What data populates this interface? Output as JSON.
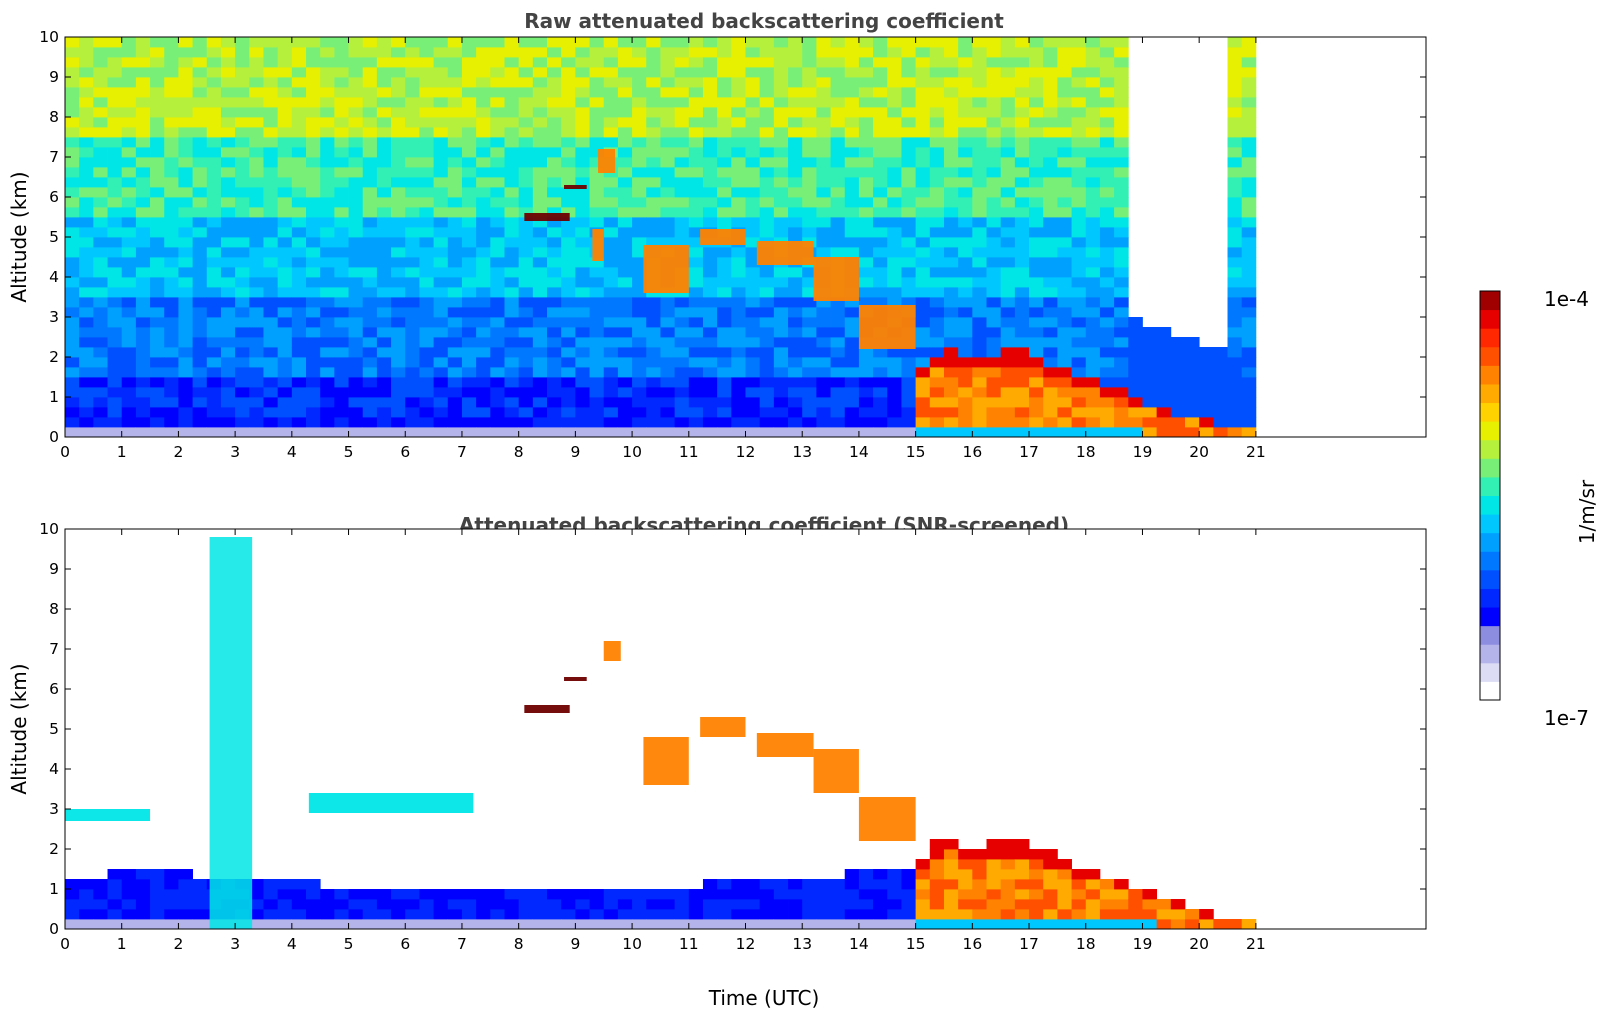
{
  "chart_data": [
    {
      "type": "heatmap",
      "title": "Raw attenuated backscattering coefficient",
      "xlabel": "",
      "ylabel": "Altitude (km)",
      "xlim": [
        0,
        24
      ],
      "ylim": [
        0,
        10
      ],
      "xticks": [
        "0",
        "1",
        "2",
        "3",
        "4",
        "5",
        "6",
        "7",
        "8",
        "9",
        "10",
        "11",
        "12",
        "13",
        "14",
        "15",
        "16",
        "17",
        "18",
        "19",
        "20",
        "21"
      ],
      "yticks": [
        "0",
        "1",
        "2",
        "3",
        "4",
        "5",
        "6",
        "7",
        "8",
        "9",
        "10"
      ],
      "data_end_hour": 21,
      "layer_top_km": [
        [
          0,
          0.35
        ],
        [
          1,
          0.4
        ],
        [
          2,
          0.4
        ],
        [
          3,
          0.45
        ],
        [
          4,
          0.45
        ],
        [
          5,
          0.45
        ],
        [
          6,
          0.45
        ],
        [
          7,
          0.45
        ],
        [
          8,
          0.45
        ],
        [
          9,
          0.45
        ],
        [
          10,
          0.45
        ],
        [
          11,
          0.45
        ],
        [
          12,
          0.45
        ],
        [
          13,
          0.45
        ],
        [
          14,
          0.45
        ],
        [
          15,
          0.5
        ],
        [
          15.1,
          1.8
        ],
        [
          15.5,
          2.2
        ],
        [
          16,
          1.9
        ],
        [
          16.5,
          2.1
        ],
        [
          17,
          2.2
        ],
        [
          17.5,
          1.7
        ],
        [
          18,
          1.5
        ],
        [
          18.5,
          1.2
        ],
        [
          19,
          0.9
        ],
        [
          19.5,
          0.6
        ],
        [
          20,
          0.4
        ],
        [
          20.5,
          0.3
        ],
        [
          21,
          0.15
        ]
      ],
      "features": [
        {
          "kind": "cloud",
          "t": [
            8.1,
            8.9
          ],
          "alt_km": [
            5.4,
            5.6
          ],
          "level": "max"
        },
        {
          "kind": "cloud",
          "t": [
            8.8,
            9.2
          ],
          "alt_km": [
            6.2,
            6.3
          ],
          "level": "max"
        },
        {
          "kind": "cloud",
          "t": [
            9.4,
            9.7
          ],
          "alt_km": [
            6.6,
            7.2
          ],
          "level": "high"
        },
        {
          "kind": "cloud",
          "t": [
            9.3,
            9.5
          ],
          "alt_km": [
            4.4,
            5.2
          ],
          "level": "high"
        },
        {
          "kind": "cloud",
          "t": [
            10.2,
            11.0
          ],
          "alt_km": [
            3.6,
            4.8
          ],
          "level": "high"
        },
        {
          "kind": "cloud",
          "t": [
            11.2,
            12.0
          ],
          "alt_km": [
            4.8,
            5.2
          ],
          "level": "high"
        },
        {
          "kind": "cloud",
          "t": [
            12.2,
            13.2
          ],
          "alt_km": [
            4.3,
            4.9
          ],
          "level": "high"
        },
        {
          "kind": "cloud",
          "t": [
            13.2,
            14.0
          ],
          "alt_km": [
            3.4,
            4.5
          ],
          "level": "high"
        },
        {
          "kind": "cloud",
          "t": [
            14.0,
            15.0
          ],
          "alt_km": [
            2.2,
            3.3
          ],
          "level": "high"
        }
      ]
    },
    {
      "type": "heatmap",
      "title": "Attenuated backscattering coefficient (SNR-screened)",
      "xlabel": "Time (UTC)",
      "ylabel": "Altitude (km)",
      "xlim": [
        0,
        24
      ],
      "ylim": [
        0,
        10
      ],
      "xticks": [
        "0",
        "1",
        "2",
        "3",
        "4",
        "5",
        "6",
        "7",
        "8",
        "9",
        "10",
        "11",
        "12",
        "13",
        "14",
        "15",
        "16",
        "17",
        "18",
        "19",
        "20",
        "21"
      ],
      "yticks": [
        "0",
        "1",
        "2",
        "3",
        "4",
        "5",
        "6",
        "7",
        "8",
        "9",
        "10"
      ],
      "data_end_hour": 21,
      "layer_top_km": [
        [
          0,
          1.2
        ],
        [
          1,
          1.4
        ],
        [
          2,
          1.4
        ],
        [
          3,
          1.3
        ],
        [
          4,
          1.2
        ],
        [
          5,
          1.0
        ],
        [
          6,
          0.9
        ],
        [
          7,
          0.9
        ],
        [
          8,
          1.0
        ],
        [
          9,
          1.1
        ],
        [
          10,
          1.1
        ],
        [
          11,
          1.1
        ],
        [
          12,
          1.2
        ],
        [
          13,
          1.3
        ],
        [
          14,
          1.4
        ],
        [
          15,
          1.4
        ],
        [
          15.1,
          1.8
        ],
        [
          15.5,
          2.3
        ],
        [
          16,
          2.0
        ],
        [
          16.5,
          2.2
        ],
        [
          17,
          2.2
        ],
        [
          17.5,
          1.8
        ],
        [
          18,
          1.5
        ],
        [
          18.5,
          1.3
        ],
        [
          19,
          1.0
        ],
        [
          19.5,
          0.7
        ],
        [
          20,
          0.4
        ],
        [
          20.5,
          0.3
        ],
        [
          21,
          0.2
        ]
      ],
      "features": [
        {
          "kind": "aerosol",
          "t": [
            0.0,
            1.5
          ],
          "alt_km": [
            2.7,
            3.0
          ],
          "level": "mid"
        },
        {
          "kind": "aerosol",
          "t": [
            4.3,
            7.2
          ],
          "alt_km": [
            2.9,
            3.4
          ],
          "level": "mid"
        },
        {
          "kind": "plume",
          "t": [
            2.55,
            3.3
          ],
          "alt_km": [
            0.0,
            9.8
          ],
          "level": "mid"
        },
        {
          "kind": "cloud",
          "t": [
            8.1,
            8.9
          ],
          "alt_km": [
            5.4,
            5.6
          ],
          "level": "max"
        },
        {
          "kind": "cloud",
          "t": [
            8.8,
            9.2
          ],
          "alt_km": [
            6.2,
            6.3
          ],
          "level": "max"
        },
        {
          "kind": "cloud",
          "t": [
            9.5,
            9.8
          ],
          "alt_km": [
            6.7,
            7.2
          ],
          "level": "high"
        },
        {
          "kind": "cloud",
          "t": [
            10.2,
            11.0
          ],
          "alt_km": [
            3.6,
            4.8
          ],
          "level": "high"
        },
        {
          "kind": "cloud",
          "t": [
            11.2,
            12.0
          ],
          "alt_km": [
            4.8,
            5.3
          ],
          "level": "high"
        },
        {
          "kind": "cloud",
          "t": [
            12.2,
            13.2
          ],
          "alt_km": [
            4.3,
            4.9
          ],
          "level": "high"
        },
        {
          "kind": "cloud",
          "t": [
            13.2,
            14.0
          ],
          "alt_km": [
            3.4,
            4.5
          ],
          "level": "high"
        },
        {
          "kind": "cloud",
          "t": [
            14.0,
            15.0
          ],
          "alt_km": [
            2.2,
            3.3
          ],
          "level": "high"
        }
      ]
    }
  ],
  "colorbar": {
    "label": "1/m/sr",
    "max_label": "1e-4",
    "min_label": "1e-7",
    "colors": [
      "#ffffff",
      "#dcdcf5",
      "#b4b4eb",
      "#8c8ce1",
      "#0000ff",
      "#0028ff",
      "#0050ff",
      "#0078ff",
      "#00a0ff",
      "#00c8ff",
      "#00e6e6",
      "#32f0b4",
      "#78f078",
      "#b4f03c",
      "#e6f000",
      "#ffd200",
      "#ffaa00",
      "#ff8200",
      "#ff5000",
      "#ff2800",
      "#e60000",
      "#a00000"
    ]
  }
}
